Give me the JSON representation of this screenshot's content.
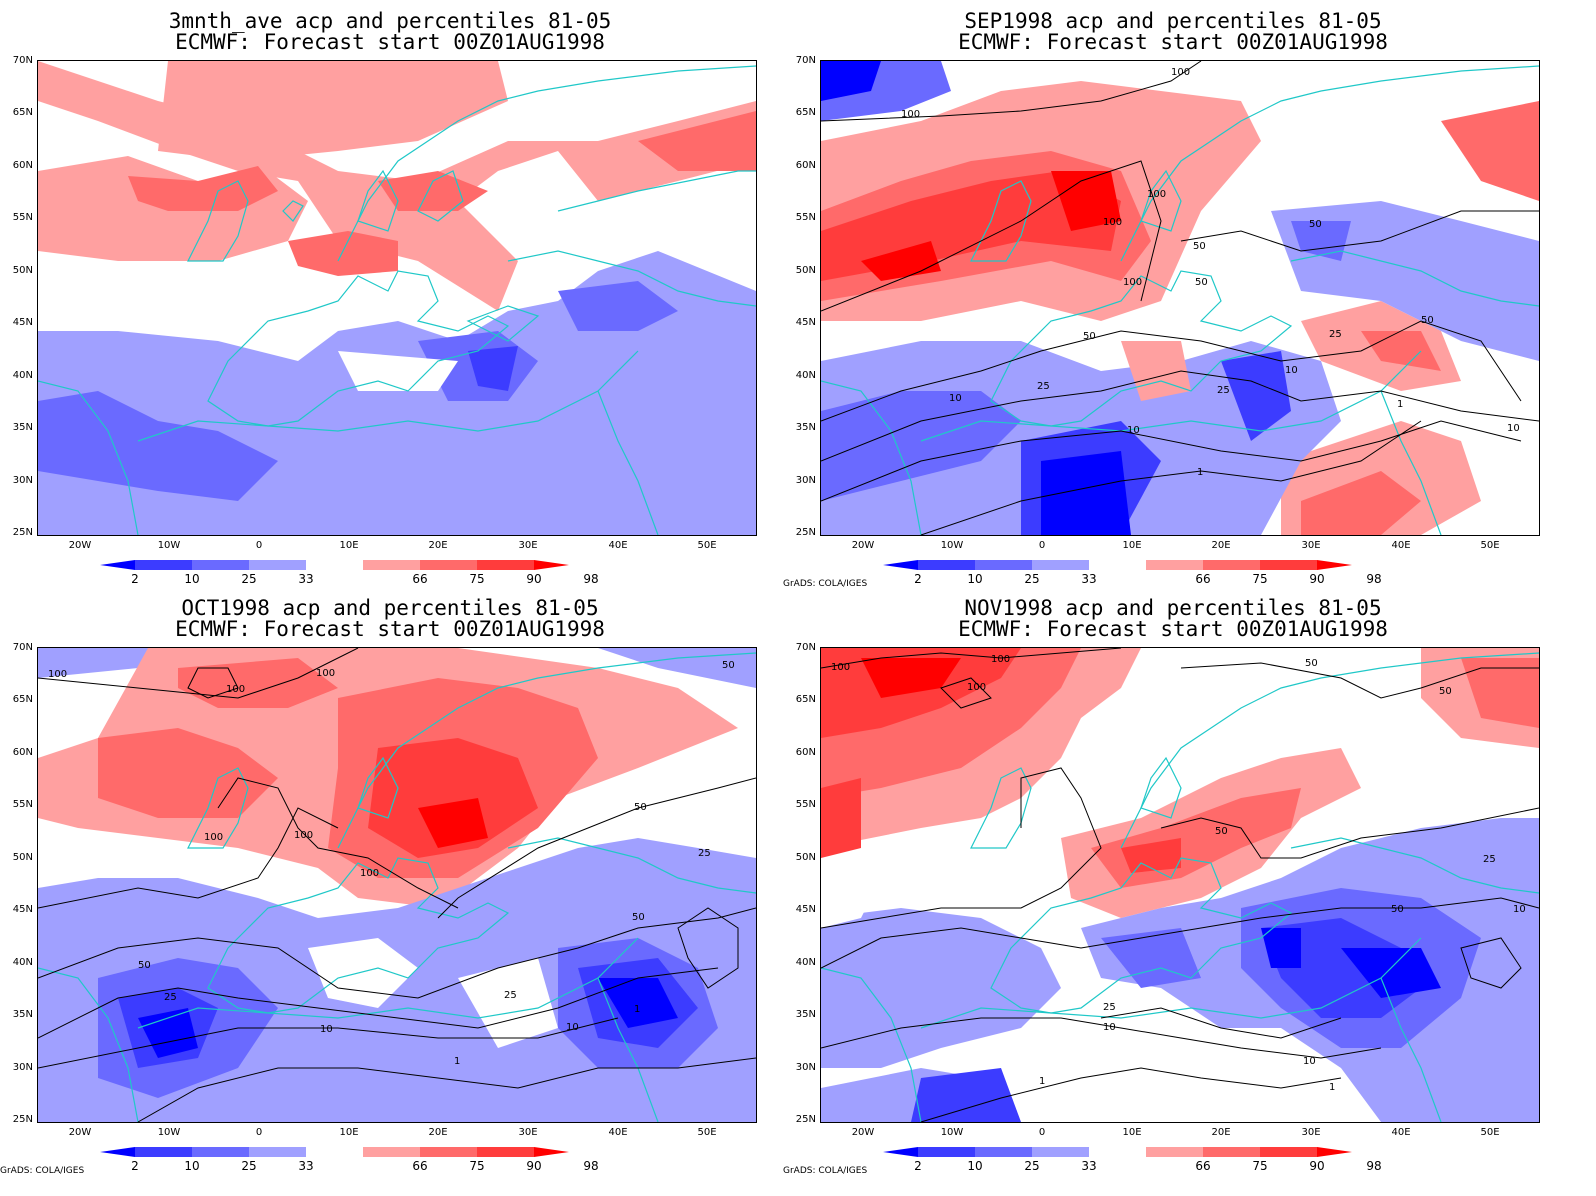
{
  "credit": "GrADS: COLA/IGES",
  "colorbar": {
    "labels": [
      "2",
      "10",
      "25",
      "33",
      "66",
      "75",
      "90",
      "98"
    ],
    "colors": [
      "#0000ff",
      "#3c3cff",
      "#6a6aff",
      "#a0a0ff",
      "#ffffff",
      "#ffa0a0",
      "#ff6a6a",
      "#ff3c3c",
      "#ff0000"
    ]
  },
  "axes": {
    "lat_labels": [
      "70N",
      "65N",
      "60N",
      "55N",
      "50N",
      "45N",
      "40N",
      "35N",
      "30N",
      "25N"
    ],
    "lon_labels": [
      "20W",
      "10W",
      "0",
      "10E",
      "20E",
      "30E",
      "40E",
      "50E"
    ]
  },
  "colors": {
    "coast": "#20c8c8",
    "contour": "#000000"
  },
  "panels": [
    {
      "title1": "3mnth_ave acp and percentiles 81-05",
      "title2": "ECMWF: Forecast start 00Z01AUG1998",
      "credit": "",
      "contour_labels": []
    },
    {
      "title1": "SEP1998 acp and percentiles 81-05",
      "title2": "ECMWF: Forecast start 00Z01AUG1998",
      "credit": "GrADS: COLA/IGES",
      "contour_labels": [
        "100",
        "100",
        "100",
        "100",
        "100",
        "50",
        "50",
        "50",
        "50",
        "50",
        "25",
        "25",
        "25",
        "10",
        "10",
        "10",
        "10",
        "1",
        "1"
      ]
    },
    {
      "title1": "OCT1998 acp and percentiles 81-05",
      "title2": "ECMWF: Forecast start 00Z01AUG1998",
      "credit": "GrADS: COLA/IGES",
      "contour_labels": [
        "100",
        "100",
        "100",
        "100",
        "100",
        "100",
        "50",
        "50",
        "50",
        "25",
        "25",
        "25",
        "10",
        "10",
        "1",
        "1",
        "50"
      ]
    },
    {
      "title1": "NOV1998 acp and percentiles 81-05",
      "title2": "ECMWF: Forecast start 00Z01AUG1998",
      "credit": "GrADS: COLA/IGES",
      "contour_labels": [
        "100",
        "100",
        "100",
        "50",
        "50",
        "50",
        "50",
        "25",
        "25",
        "10",
        "10",
        "10",
        "1",
        "1"
      ]
    }
  ]
}
